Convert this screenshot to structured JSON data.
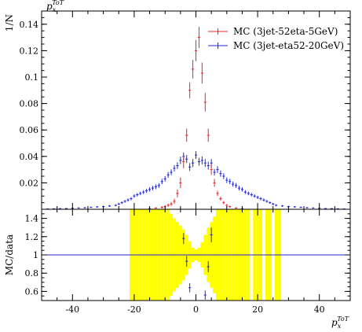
{
  "chart_data": [
    {
      "type": "scatter",
      "panel": "main",
      "title": "",
      "x_label_top": "p_x^ToT",
      "ylabel": "1/N",
      "xlim": [
        -50,
        50
      ],
      "ylim": [
        0,
        0.15
      ],
      "x_ticks": [
        -40,
        -20,
        0,
        20,
        40
      ],
      "y_ticks": [
        0.02,
        0.04,
        0.06,
        0.08,
        0.1,
        0.12,
        0.14
      ],
      "y_tick_labels": [
        "0.02",
        "0.04",
        "0.06",
        "0.08",
        "0.1",
        "0.12",
        "0.14"
      ],
      "legend_position": "top-right",
      "series": [
        {
          "name": "MC (3jet-52eta-5GeV)",
          "color": "#e8262b",
          "x": [
            -15,
            -13,
            -11,
            -10,
            -9,
            -8,
            -7,
            -6,
            -5,
            -4,
            -3,
            -2,
            -1,
            0,
            1,
            2,
            3,
            4,
            5,
            6,
            7,
            8,
            9,
            10,
            11,
            13,
            15
          ],
          "y": [
            0.0005,
            0.001,
            0.0015,
            0.002,
            0.003,
            0.004,
            0.006,
            0.012,
            0.02,
            0.036,
            0.056,
            0.09,
            0.106,
            0.12,
            0.13,
            0.103,
            0.081,
            0.056,
            0.03,
            0.02,
            0.012,
            0.008,
            0.005,
            0.003,
            0.002,
            0.001,
            0.0005
          ],
          "yerr": [
            0.0003,
            0.0005,
            0.0008,
            0.001,
            0.0012,
            0.0015,
            0.002,
            0.003,
            0.004,
            0.005,
            0.005,
            0.006,
            0.007,
            0.008,
            0.008,
            0.008,
            0.007,
            0.005,
            0.004,
            0.003,
            0.002,
            0.0015,
            0.0012,
            0.001,
            0.0008,
            0.0005,
            0.0003
          ]
        },
        {
          "name": "MC (3jet-eta52-20GeV)",
          "color": "#2326d6",
          "x": [
            -48,
            -46,
            -44,
            -42,
            -40,
            -38,
            -36,
            -34,
            -32,
            -30,
            -28,
            -26,
            -25,
            -24,
            -23,
            -22,
            -21,
            -20,
            -19,
            -18,
            -17,
            -16,
            -15,
            -14,
            -13,
            -12,
            -11,
            -10,
            -9,
            -8,
            -7,
            -6,
            -5,
            -4,
            -3,
            -2,
            -1,
            0,
            1,
            2,
            3,
            4,
            5,
            6,
            7,
            8,
            9,
            10,
            11,
            12,
            13,
            14,
            15,
            16,
            17,
            18,
            19,
            20,
            21,
            22,
            23,
            24,
            25,
            26,
            28,
            30,
            32,
            34,
            36,
            38,
            40,
            42,
            44,
            46,
            48
          ],
          "y": [
            0.0003,
            0.0004,
            0.0005,
            0.0006,
            0.0008,
            0.001,
            0.0012,
            0.0015,
            0.0018,
            0.002,
            0.0025,
            0.003,
            0.004,
            0.005,
            0.006,
            0.007,
            0.008,
            0.01,
            0.011,
            0.012,
            0.013,
            0.014,
            0.015,
            0.016,
            0.017,
            0.018,
            0.021,
            0.023,
            0.026,
            0.028,
            0.031,
            0.033,
            0.037,
            0.04,
            0.038,
            0.032,
            0.035,
            0.041,
            0.036,
            0.037,
            0.035,
            0.033,
            0.035,
            0.028,
            0.03,
            0.027,
            0.025,
            0.022,
            0.021,
            0.019,
            0.018,
            0.016,
            0.015,
            0.013,
            0.012,
            0.011,
            0.01,
            0.009,
            0.008,
            0.007,
            0.006,
            0.005,
            0.004,
            0.003,
            0.0025,
            0.002,
            0.0018,
            0.0015,
            0.0012,
            0.001,
            0.0008,
            0.0006,
            0.0005,
            0.0004,
            0.0003
          ],
          "yerr": [
            0.0002,
            0.0002,
            0.0003,
            0.0003,
            0.0004,
            0.0004,
            0.0005,
            0.0005,
            0.0006,
            0.0006,
            0.0007,
            0.0008,
            0.0009,
            0.001,
            0.001,
            0.0012,
            0.0012,
            0.0013,
            0.0013,
            0.0014,
            0.0015,
            0.0015,
            0.0016,
            0.0017,
            0.0018,
            0.0018,
            0.002,
            0.002,
            0.0022,
            0.0022,
            0.0024,
            0.0025,
            0.0028,
            0.003,
            0.003,
            0.003,
            0.003,
            0.003,
            0.003,
            0.003,
            0.003,
            0.003,
            0.003,
            0.0025,
            0.0025,
            0.0024,
            0.0022,
            0.0021,
            0.002,
            0.0019,
            0.0018,
            0.0017,
            0.0016,
            0.0015,
            0.0014,
            0.0013,
            0.0013,
            0.0012,
            0.0012,
            0.0011,
            0.001,
            0.0009,
            0.0009,
            0.0008,
            0.0007,
            0.0006,
            0.0006,
            0.0005,
            0.0005,
            0.0004,
            0.0004,
            0.0003,
            0.0003,
            0.0002,
            0.0002
          ]
        }
      ]
    },
    {
      "type": "scatter",
      "panel": "ratio",
      "xlabel": "p_x^ToT",
      "ylabel": "MC/data",
      "xlim": [
        -50,
        50
      ],
      "ylim": [
        0.5,
        1.5
      ],
      "x_ticks": [
        -40,
        -20,
        0,
        20,
        40
      ],
      "x_tick_labels": [
        "-40",
        "-20",
        "0",
        "20",
        "40"
      ],
      "y_ticks": [
        0.6,
        0.8,
        1,
        1.2,
        1.4
      ],
      "y_tick_labels": [
        "0.6",
        "0.8",
        "1",
        "1.2",
        "1.4"
      ],
      "reference_line": 1,
      "band_color": "#ffff00",
      "uncertainty_band": {
        "x": [
          -21,
          -20,
          -19,
          -18,
          -17,
          -16,
          -15,
          -14,
          -13,
          -12,
          -11,
          -10,
          -9,
          -8,
          -7,
          -6,
          -5,
          -4,
          -3,
          -2,
          -1,
          0,
          1,
          2,
          3,
          4,
          5,
          6,
          7,
          8,
          9,
          10,
          11,
          12,
          13,
          14,
          15,
          16,
          17,
          19,
          20,
          21,
          23,
          24,
          26,
          27
        ],
        "half_width": [
          0.6,
          0.6,
          0.6,
          0.6,
          0.6,
          0.6,
          0.6,
          0.6,
          0.6,
          0.6,
          0.6,
          0.6,
          0.6,
          0.45,
          0.4,
          0.36,
          0.32,
          0.28,
          0.22,
          0.15,
          0.08,
          0.06,
          0.08,
          0.14,
          0.22,
          0.3,
          0.36,
          0.42,
          0.5,
          0.6,
          0.6,
          0.6,
          0.6,
          0.6,
          0.6,
          0.6,
          0.6,
          0.6,
          0.6,
          0.6,
          0.6,
          0.6,
          0.6,
          0.6,
          0.6,
          0.6
        ]
      },
      "series": [
        {
          "name": "MC (3jet-52eta-5GeV)",
          "color": "#e8262b",
          "x": [],
          "y": [],
          "yerr": []
        },
        {
          "name": "MC (3jet-eta52-20GeV)",
          "color": "#2326d6",
          "x": [
            -4,
            -3,
            -2,
            3,
            4,
            5
          ],
          "y": [
            1.18,
            0.93,
            0.64,
            0.56,
            0.87,
            1.22
          ],
          "yerr": [
            0.06,
            0.06,
            0.05,
            0.05,
            0.06,
            0.08
          ]
        }
      ]
    }
  ]
}
